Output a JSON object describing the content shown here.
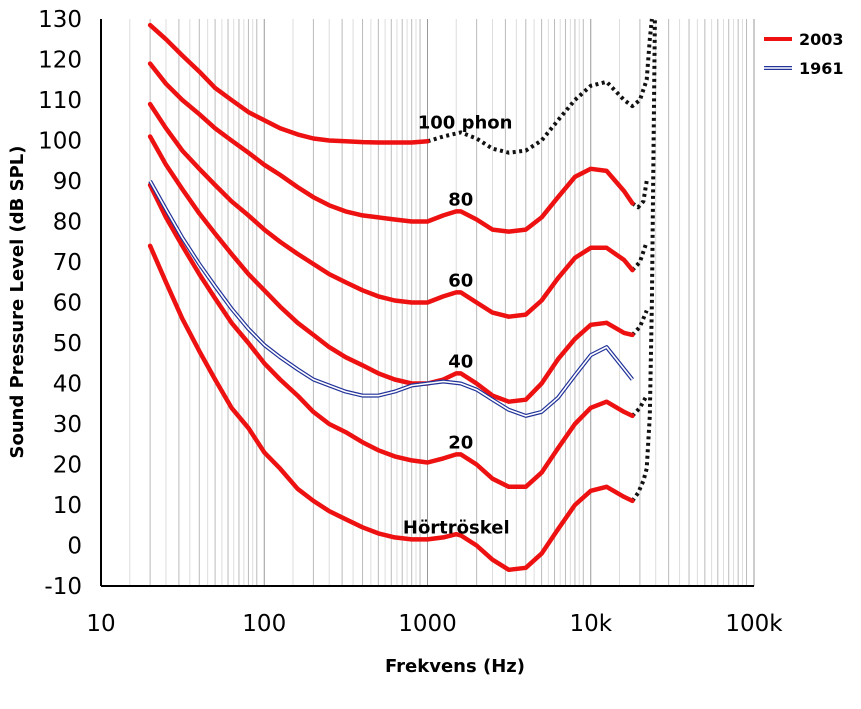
{
  "chart_data": {
    "type": "line",
    "title": "",
    "xlabel": "Frekvens (Hz)",
    "ylabel": "Sound Pressure Level (dB SPL)",
    "xscale": "log",
    "xlim": [
      10,
      100000
    ],
    "ylim": [
      -10,
      130
    ],
    "grid": true,
    "x_ticks": [
      {
        "value": 10,
        "label": "10"
      },
      {
        "value": 100,
        "label": "100"
      },
      {
        "value": 1000,
        "label": "1000"
      },
      {
        "value": 10000,
        "label": "10k"
      },
      {
        "value": 100000,
        "label": "100k"
      }
    ],
    "y_ticks": [
      130,
      120,
      110,
      100,
      90,
      80,
      70,
      60,
      50,
      40,
      30,
      20,
      10,
      0,
      -10
    ],
    "legend": {
      "position": "top-right",
      "entries": [
        {
          "label": "2003",
          "color": "#ee1111",
          "style": "solid"
        },
        {
          "label": "1961",
          "color": "#223399",
          "style": "double"
        }
      ]
    },
    "colors": {
      "curve2003": "#ee1111",
      "curve1961": "#223399",
      "dotted": "#111111",
      "grid": "#bbbbbb"
    },
    "series": [
      {
        "name": "Hörtröskel",
        "label": "Hörtröskel",
        "label_at": [
          1500,
          3
        ],
        "points": [
          [
            20,
            74
          ],
          [
            25,
            65
          ],
          [
            31.5,
            56
          ],
          [
            40,
            48
          ],
          [
            50,
            41
          ],
          [
            63,
            34
          ],
          [
            80,
            29
          ],
          [
            100,
            23
          ],
          [
            125,
            19
          ],
          [
            160,
            14
          ],
          [
            200,
            11
          ],
          [
            250,
            8.5
          ],
          [
            315,
            6.5
          ],
          [
            400,
            4.5
          ],
          [
            500,
            3
          ],
          [
            630,
            2
          ],
          [
            800,
            1.5
          ],
          [
            1000,
            1.5
          ],
          [
            1250,
            2
          ],
          [
            1500,
            2.8
          ],
          [
            1600,
            2.5
          ],
          [
            2000,
            0
          ],
          [
            2500,
            -3.5
          ],
          [
            3150,
            -6
          ],
          [
            4000,
            -5.5
          ],
          [
            5000,
            -2
          ],
          [
            6300,
            4
          ],
          [
            8000,
            10
          ],
          [
            10000,
            13.5
          ],
          [
            12500,
            14.5
          ],
          [
            16000,
            12
          ],
          [
            18000,
            11
          ]
        ],
        "dotted": [
          [
            18000,
            11
          ],
          [
            19500,
            13
          ],
          [
            21000,
            16
          ],
          [
            22000,
            19
          ],
          [
            23000,
            32
          ],
          [
            23700,
            60
          ],
          [
            24200,
            95
          ],
          [
            24700,
            130
          ]
        ]
      },
      {
        "name": "20 phon",
        "label": "20",
        "label_at": [
          1600,
          24
        ],
        "points": [
          [
            20,
            89
          ],
          [
            25,
            81
          ],
          [
            31.5,
            74
          ],
          [
            40,
            67
          ],
          [
            50,
            61
          ],
          [
            63,
            55
          ],
          [
            80,
            50
          ],
          [
            100,
            45
          ],
          [
            125,
            41
          ],
          [
            160,
            37
          ],
          [
            200,
            33
          ],
          [
            250,
            30
          ],
          [
            315,
            28
          ],
          [
            400,
            25.5
          ],
          [
            500,
            23.5
          ],
          [
            630,
            22
          ],
          [
            800,
            21
          ],
          [
            1000,
            20.5
          ],
          [
            1250,
            21.5
          ],
          [
            1500,
            22.5
          ],
          [
            1600,
            22.5
          ],
          [
            2000,
            20
          ],
          [
            2500,
            16.5
          ],
          [
            3150,
            14.5
          ],
          [
            4000,
            14.5
          ],
          [
            5000,
            18
          ],
          [
            6300,
            24
          ],
          [
            8000,
            30
          ],
          [
            10000,
            34
          ],
          [
            12500,
            35.5
          ],
          [
            16000,
            33
          ],
          [
            18000,
            32
          ]
        ],
        "dotted": [
          [
            18000,
            32
          ],
          [
            20000,
            34
          ],
          [
            22000,
            37
          ]
        ]
      },
      {
        "name": "40 phon",
        "label": "40",
        "label_at": [
          1600,
          44
        ],
        "points": [
          [
            20,
            101
          ],
          [
            25,
            94
          ],
          [
            31.5,
            88
          ],
          [
            40,
            82
          ],
          [
            50,
            77
          ],
          [
            63,
            72
          ],
          [
            80,
            67
          ],
          [
            100,
            63
          ],
          [
            125,
            59
          ],
          [
            160,
            55
          ],
          [
            200,
            52
          ],
          [
            250,
            49
          ],
          [
            315,
            46.5
          ],
          [
            400,
            44.5
          ],
          [
            500,
            42.5
          ],
          [
            630,
            41
          ],
          [
            800,
            40
          ],
          [
            1000,
            40
          ],
          [
            1250,
            41
          ],
          [
            1500,
            42.5
          ],
          [
            1600,
            42.5
          ],
          [
            2000,
            40
          ],
          [
            2500,
            37
          ],
          [
            3150,
            35.5
          ],
          [
            4000,
            36
          ],
          [
            5000,
            40
          ],
          [
            6300,
            46
          ],
          [
            8000,
            51
          ],
          [
            10000,
            54.5
          ],
          [
            12500,
            55
          ],
          [
            16000,
            52.5
          ],
          [
            18000,
            52
          ]
        ],
        "dotted": [
          [
            18000,
            52
          ],
          [
            20000,
            54
          ],
          [
            22000,
            58
          ]
        ]
      },
      {
        "name": "60 phon",
        "label": "60",
        "label_at": [
          1600,
          64
        ],
        "points": [
          [
            20,
            109
          ],
          [
            25,
            103
          ],
          [
            31.5,
            97.5
          ],
          [
            40,
            93
          ],
          [
            50,
            89
          ],
          [
            63,
            85
          ],
          [
            80,
            81.5
          ],
          [
            100,
            78
          ],
          [
            125,
            75
          ],
          [
            160,
            72
          ],
          [
            200,
            69.5
          ],
          [
            250,
            67
          ],
          [
            315,
            65
          ],
          [
            400,
            63
          ],
          [
            500,
            61.5
          ],
          [
            630,
            60.5
          ],
          [
            800,
            60
          ],
          [
            1000,
            60
          ],
          [
            1250,
            61.5
          ],
          [
            1500,
            62.5
          ],
          [
            1600,
            62.5
          ],
          [
            2000,
            60
          ],
          [
            2500,
            57.5
          ],
          [
            3150,
            56.5
          ],
          [
            4000,
            57
          ],
          [
            5000,
            60.5
          ],
          [
            6300,
            66
          ],
          [
            8000,
            71
          ],
          [
            10000,
            73.5
          ],
          [
            12500,
            73.5
          ],
          [
            16000,
            70.5
          ],
          [
            18000,
            68
          ]
        ],
        "dotted": [
          [
            18000,
            68
          ],
          [
            20000,
            70
          ],
          [
            22000,
            75
          ]
        ]
      },
      {
        "name": "80 phon",
        "label": "80",
        "label_at": [
          1600,
          84
        ],
        "points": [
          [
            20,
            119
          ],
          [
            25,
            114
          ],
          [
            31.5,
            110
          ],
          [
            40,
            106.5
          ],
          [
            50,
            103
          ],
          [
            63,
            100
          ],
          [
            80,
            97
          ],
          [
            100,
            94
          ],
          [
            125,
            91.5
          ],
          [
            160,
            88.5
          ],
          [
            200,
            86
          ],
          [
            250,
            84
          ],
          [
            315,
            82.5
          ],
          [
            400,
            81.5
          ],
          [
            500,
            81
          ],
          [
            630,
            80.5
          ],
          [
            800,
            80
          ],
          [
            1000,
            80
          ],
          [
            1250,
            81.5
          ],
          [
            1500,
            82.5
          ],
          [
            1600,
            82.5
          ],
          [
            2000,
            80.5
          ],
          [
            2500,
            78
          ],
          [
            3150,
            77.5
          ],
          [
            4000,
            78
          ],
          [
            5000,
            81
          ],
          [
            6300,
            86
          ],
          [
            8000,
            91
          ],
          [
            10000,
            93
          ],
          [
            12500,
            92.5
          ],
          [
            16000,
            87.5
          ],
          [
            18000,
            84.5
          ]
        ],
        "dotted": [
          [
            18000,
            84.5
          ],
          [
            19500,
            83.5
          ],
          [
            21000,
            85
          ],
          [
            22000,
            90
          ]
        ]
      },
      {
        "name": "100 phon",
        "label": "100 phon",
        "label_at": [
          1700,
          103
        ],
        "points": [
          [
            20,
            128.5
          ],
          [
            25,
            125
          ],
          [
            31.5,
            121
          ],
          [
            40,
            117
          ],
          [
            50,
            113
          ],
          [
            63,
            110
          ],
          [
            80,
            107
          ],
          [
            100,
            105
          ],
          [
            125,
            103
          ],
          [
            160,
            101.5
          ],
          [
            200,
            100.5
          ],
          [
            250,
            100
          ],
          [
            315,
            99.8
          ],
          [
            400,
            99.6
          ],
          [
            500,
            99.5
          ],
          [
            630,
            99.5
          ],
          [
            800,
            99.5
          ],
          [
            1000,
            99.8
          ]
        ],
        "dotted": [
          [
            1000,
            99.8
          ],
          [
            1250,
            101
          ],
          [
            1600,
            102
          ],
          [
            2000,
            100.5
          ],
          [
            2500,
            98
          ],
          [
            3150,
            97
          ],
          [
            4000,
            97.5
          ],
          [
            5000,
            100
          ],
          [
            6300,
            105
          ],
          [
            8000,
            110
          ],
          [
            10000,
            113.5
          ],
          [
            12500,
            114.5
          ],
          [
            16000,
            110
          ],
          [
            18000,
            108.5
          ],
          [
            20000,
            110
          ],
          [
            22000,
            115
          ],
          [
            23000,
            125
          ],
          [
            23700,
            130
          ]
        ]
      },
      {
        "name": "1961 (40 phon)",
        "points": [
          [
            20,
            90
          ],
          [
            25,
            83
          ],
          [
            31.5,
            76
          ],
          [
            40,
            69.5
          ],
          [
            50,
            64
          ],
          [
            63,
            58.5
          ],
          [
            80,
            53.5
          ],
          [
            100,
            49.5
          ],
          [
            125,
            46.5
          ],
          [
            160,
            43.5
          ],
          [
            200,
            41
          ],
          [
            250,
            39.5
          ],
          [
            315,
            38
          ],
          [
            400,
            37
          ],
          [
            500,
            37
          ],
          [
            630,
            38
          ],
          [
            800,
            39.5
          ],
          [
            1000,
            40
          ],
          [
            1250,
            40.5
          ],
          [
            1600,
            40
          ],
          [
            2000,
            38.5
          ],
          [
            2500,
            36
          ],
          [
            3150,
            33.5
          ],
          [
            4000,
            32
          ],
          [
            5000,
            33
          ],
          [
            6300,
            36.5
          ],
          [
            8000,
            42
          ],
          [
            10000,
            47
          ],
          [
            12500,
            49
          ],
          [
            15000,
            45
          ],
          [
            18000,
            41
          ]
        ]
      }
    ]
  }
}
